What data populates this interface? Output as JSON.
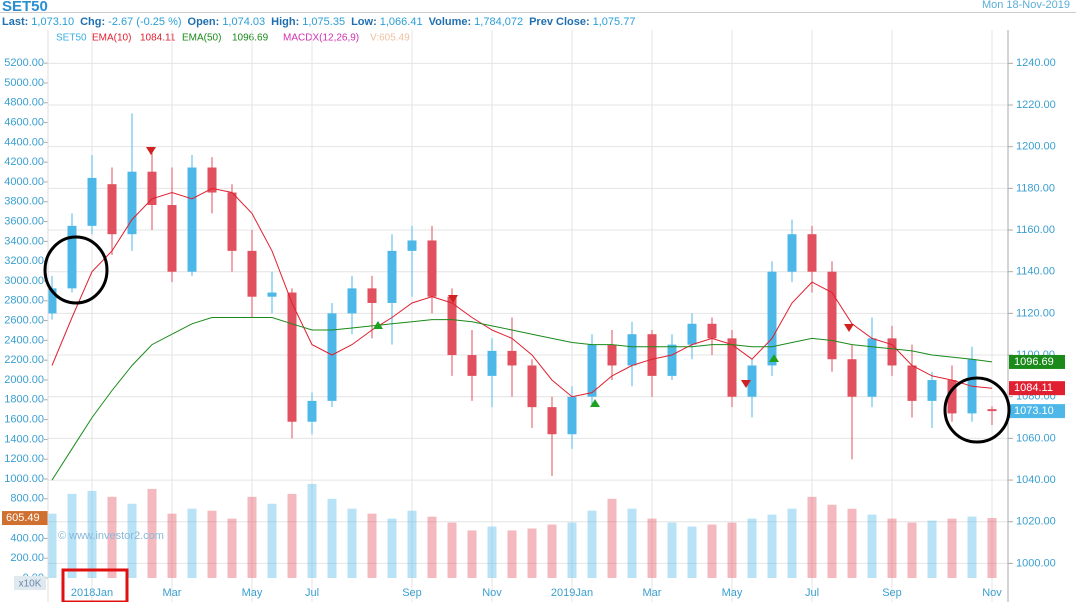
{
  "header": {
    "title": "SET50",
    "date": "Mon 18-Nov-2019",
    "stats": [
      {
        "label": "Last:",
        "value": "1,073.10"
      },
      {
        "label": "Chg:",
        "value": "-2.67 (-0.25 %)"
      },
      {
        "label": "Open:",
        "value": "1,074.03"
      },
      {
        "label": "High:",
        "value": "1,075.35"
      },
      {
        "label": "Low:",
        "value": "1,066.41"
      },
      {
        "label": "Volume:",
        "value": "1,784,072"
      },
      {
        "label": "Prev Close:",
        "value": "1,075.77"
      }
    ],
    "legend": {
      "symbol": "SET50",
      "macd": "MACDX(12,26,9)",
      "volume": "V:605.49"
    },
    "watermark": "© www.investor2.com",
    "unit": "x10K"
  },
  "chart_data": {
    "type": "candlestick",
    "categories": [
      null,
      null,
      "2018Jan",
      null,
      null,
      null,
      "Mar",
      null,
      null,
      null,
      "May",
      null,
      null,
      "Jul",
      null,
      null,
      null,
      null,
      "Sep",
      null,
      null,
      null,
      "Nov",
      null,
      null,
      null,
      "2019Jan",
      null,
      null,
      null,
      "Mar",
      null,
      null,
      null,
      "May",
      null,
      null,
      null,
      "Jul",
      null,
      null,
      null,
      "Sep",
      null,
      null,
      null,
      null,
      "Nov"
    ],
    "open": [
      1120,
      1132,
      1162,
      1182,
      1158,
      1188,
      1172,
      1140,
      1190,
      1178,
      1150,
      1128,
      1130,
      1068,
      1078,
      1120,
      1132,
      1125,
      1150,
      1155,
      1128,
      1100,
      1090,
      1102,
      1095,
      1075,
      1062,
      1080,
      1105,
      1095,
      1110,
      1090,
      1105,
      1115,
      1108,
      1080,
      1095,
      1140,
      1158,
      1140,
      1098,
      1080,
      1108,
      1095,
      1078,
      1088,
      1072,
      1074.03
    ],
    "high": [
      1138,
      1168,
      1196,
      1190,
      1216,
      1198,
      1190,
      1196,
      1195,
      1182,
      1160,
      1140,
      1132,
      1082,
      1125,
      1138,
      1138,
      1158,
      1162,
      1162,
      1132,
      1112,
      1108,
      1118,
      1098,
      1080,
      1085,
      1110,
      1112,
      1116,
      1112,
      1110,
      1120,
      1118,
      1112,
      1098,
      1145,
      1165,
      1162,
      1145,
      1105,
      1118,
      1114,
      1105,
      1092,
      1095,
      1104,
      1075.35
    ],
    "low": [
      1117,
      1130,
      1158,
      1148,
      1150,
      1160,
      1135,
      1138,
      1168,
      1140,
      1118,
      1120,
      1060,
      1062,
      1075,
      1110,
      1108,
      1105,
      1128,
      1120,
      1090,
      1078,
      1075,
      1080,
      1065,
      1042,
      1055,
      1076,
      1088,
      1085,
      1080,
      1088,
      1098,
      1100,
      1075,
      1070,
      1090,
      1135,
      1130,
      1092,
      1050,
      1075,
      1090,
      1070,
      1065,
      1068,
      1068,
      1066.41
    ],
    "close": [
      1132,
      1162,
      1185,
      1158,
      1188,
      1172,
      1140,
      1190,
      1178,
      1150,
      1128,
      1130,
      1068,
      1078,
      1120,
      1132,
      1125,
      1150,
      1155,
      1128,
      1100,
      1090,
      1102,
      1095,
      1075,
      1062,
      1080,
      1105,
      1095,
      1110,
      1090,
      1105,
      1115,
      1108,
      1080,
      1095,
      1140,
      1158,
      1140,
      1098,
      1080,
      1108,
      1095,
      1078,
      1088,
      1072,
      1098,
      1073.1
    ],
    "close_last_label": "1073.10",
    "up_color": "#4db8e8",
    "down_color": "#e0505f",
    "series": [
      {
        "name": "EMA(10)",
        "color": "#e02030",
        "values": [
          1095,
          1118,
          1140,
          1150,
          1165,
          1175,
          1178,
          1175,
          1180,
          1178,
          1168,
          1150,
          1125,
          1105,
          1100,
          1105,
          1112,
          1118,
          1125,
          1128,
          1125,
          1118,
          1112,
          1108,
          1100,
          1088,
          1080,
          1082,
          1090,
          1095,
          1098,
          1100,
          1105,
          1108,
          1105,
          1098,
          1108,
          1125,
          1135,
          1130,
          1115,
          1108,
          1105,
          1095,
          1090,
          1088,
          1085,
          1084.11
        ]
      },
      {
        "name": "EMA(50)",
        "color": "#1a8a1a",
        "values": [
          1040,
          1055,
          1070,
          1083,
          1095,
          1105,
          1110,
          1115,
          1118,
          1118,
          1118,
          1118,
          1115,
          1112,
          1112,
          1113,
          1114,
          1115,
          1116,
          1117,
          1117,
          1116,
          1114,
          1112,
          1110,
          1108,
          1106,
          1105,
          1105,
          1104,
          1104,
          1104,
          1104,
          1105,
          1105,
          1104,
          1104,
          1106,
          1108,
          1107,
          1105,
          1104,
          1103,
          1102,
          1100,
          1099,
          1098,
          1096.69
        ]
      }
    ],
    "volume": [
      650,
      850,
      880,
      820,
      750,
      900,
      650,
      700,
      680,
      600,
      820,
      750,
      850,
      950,
      800,
      700,
      650,
      600,
      680,
      620,
      560,
      480,
      520,
      480,
      500,
      540,
      560,
      680,
      800,
      700,
      600,
      560,
      520,
      540,
      560,
      600,
      640,
      700,
      820,
      740,
      700,
      640,
      600,
      560,
      580,
      600,
      620,
      605.49
    ],
    "ylim": [
      993,
      1256
    ],
    "yticks": [
      {
        "value": 1000,
        "label": "1000.00"
      },
      {
        "value": 1020,
        "label": "1020.00"
      },
      {
        "value": 1040,
        "label": "1040.00"
      },
      {
        "value": 1060,
        "label": "1060.00"
      },
      {
        "value": 1080,
        "label": "1080.00"
      },
      {
        "value": 1100,
        "label": "1100.00"
      },
      {
        "value": 1120,
        "label": "1120.00"
      },
      {
        "value": 1140,
        "label": "1140.00"
      },
      {
        "value": 1160,
        "label": "1160.00"
      },
      {
        "value": 1180,
        "label": "1180.00"
      },
      {
        "value": 1200,
        "label": "1200.00"
      },
      {
        "value": 1220,
        "label": "1220.00"
      },
      {
        "value": 1240,
        "label": "1240.00"
      }
    ],
    "vlim": [
      0,
      5535
    ],
    "vticks": [
      {
        "value": 0,
        "label": "0.00"
      },
      {
        "value": 200,
        "label": "200.00"
      },
      {
        "value": 400,
        "label": "400.00"
      },
      {
        "value": 600,
        "label": "600.00"
      },
      {
        "value": 800,
        "label": "800.00"
      },
      {
        "value": 1000,
        "label": "1000.00"
      },
      {
        "value": 1200,
        "label": "1200.00"
      },
      {
        "value": 1400,
        "label": "1400.00"
      },
      {
        "value": 1600,
        "label": "1600.00"
      },
      {
        "value": 1800,
        "label": "1800.00"
      },
      {
        "value": 2000,
        "label": "2000.00"
      },
      {
        "value": 2200,
        "label": "2200.00"
      },
      {
        "value": 2400,
        "label": "2400.00"
      },
      {
        "value": 2600,
        "label": "2600.00"
      },
      {
        "value": 2800,
        "label": "2800.00"
      },
      {
        "value": 3000,
        "label": "3000.00"
      },
      {
        "value": 3200,
        "label": "3200.00"
      },
      {
        "value": 3400,
        "label": "3400.00"
      },
      {
        "value": 3600,
        "label": "3600.00"
      },
      {
        "value": 3800,
        "label": "3800.00"
      },
      {
        "value": 4000,
        "label": "4000.00"
      },
      {
        "value": 4200,
        "label": "4200.00"
      },
      {
        "value": 4400,
        "label": "4400.00"
      },
      {
        "value": 4600,
        "label": "4600.00"
      },
      {
        "value": 4800,
        "label": "4800.00"
      },
      {
        "value": 5000,
        "label": "5000.00"
      },
      {
        "value": 5200,
        "label": "5200.00"
      }
    ],
    "grid": true
  }
}
